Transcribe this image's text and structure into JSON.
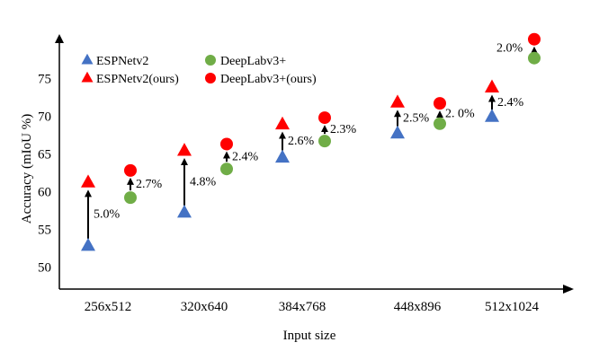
{
  "chart_data": {
    "type": "scatter",
    "xlabel": "Input size",
    "ylabel": "Accuracy (mIoU %)",
    "ylim": [
      48,
      80
    ],
    "yticks": [
      50,
      55,
      60,
      65,
      70,
      75
    ],
    "categories": [
      "256x512",
      "320x640",
      "384x768",
      "448x896",
      "512x1024"
    ],
    "legend_position": "top-left",
    "grid": false,
    "series": [
      {
        "name": "ESPNetv2",
        "marker": "triangle",
        "color": "#4472C4",
        "values": [
          52.8,
          57.2,
          64.5,
          67.7,
          69.9
        ]
      },
      {
        "name": "ESPNetv2(ours)",
        "marker": "triangle",
        "color": "#FF0000",
        "values": [
          61.2,
          65.4,
          68.9,
          71.8,
          73.8
        ]
      },
      {
        "name": "DeepLabv3+",
        "marker": "circle",
        "color": "#70AD47",
        "values": [
          59.2,
          63.0,
          66.7,
          69.0,
          77.7
        ]
      },
      {
        "name": "DeepLabv3+(ours)",
        "marker": "circle",
        "color": "#FF0000",
        "values": [
          62.8,
          66.3,
          69.8,
          71.7,
          80.2
        ]
      }
    ],
    "annotations": {
      "ESPNetv2": [
        "5.0%",
        "4.8%",
        "2.6%",
        "2.5%",
        "2.4%"
      ],
      "DeepLabv3+": [
        "2.7%",
        "2.4%",
        "2.3%",
        "2. 0%",
        "2.0%"
      ]
    }
  }
}
